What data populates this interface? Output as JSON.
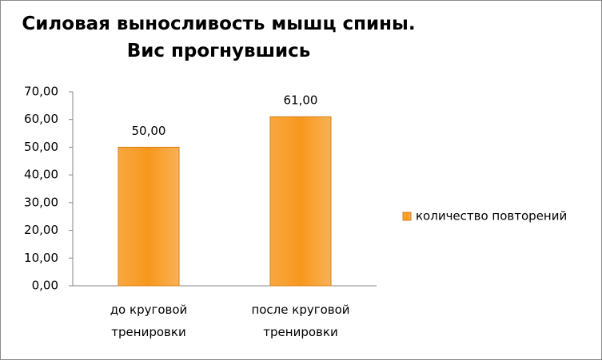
{
  "chart_data": {
    "type": "bar",
    "title": "Силовая выносливость мышц спины. Вис прогнувшись",
    "categories": [
      "до круговой тренировки",
      "после круговой тренировки"
    ],
    "series": [
      {
        "name": "количество повторений",
        "color": "#f7981d",
        "values": [
          50,
          61
        ],
        "value_labels": [
          "50,00",
          "61,00"
        ]
      }
    ],
    "ylim": [
      0,
      70
    ],
    "yticks": [
      {
        "value": 0,
        "label": "0,00"
      },
      {
        "value": 10,
        "label": "10,00"
      },
      {
        "value": 20,
        "label": "20,00"
      },
      {
        "value": 30,
        "label": "30,00"
      },
      {
        "value": 40,
        "label": "40,00"
      },
      {
        "value": 50,
        "label": "50,00"
      },
      {
        "value": 60,
        "label": "60,00"
      },
      {
        "value": 70,
        "label": "70,00"
      }
    ],
    "grid": false,
    "legend": "right"
  }
}
